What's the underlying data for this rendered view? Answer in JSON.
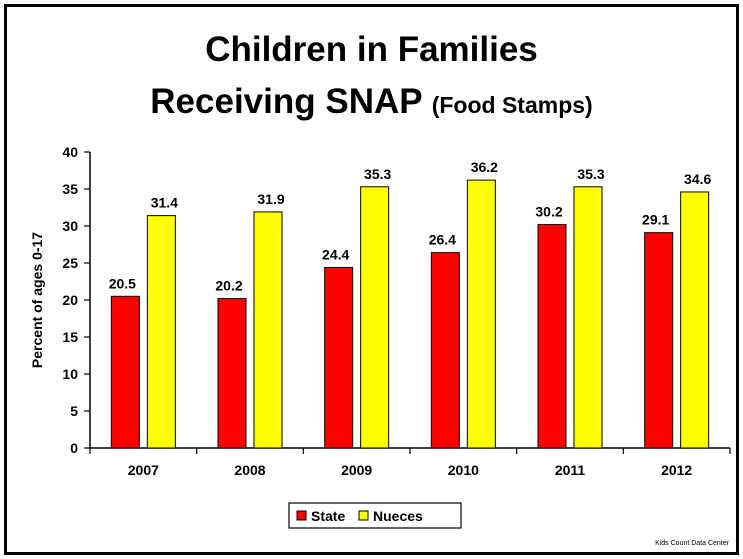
{
  "title_line1": "Children in Families",
  "title_line2": "Receiving SNAP",
  "title_line2_suffix": "(Food Stamps)",
  "source": "Kids Count Data Center",
  "colors": {
    "state": "#ff0000",
    "nueces": "#ffff00",
    "outline": "#000000"
  },
  "chart_data": {
    "type": "bar",
    "categories": [
      "2007",
      "2008",
      "2009",
      "2010",
      "2011",
      "2012"
    ],
    "series": [
      {
        "name": "State",
        "values": [
          20.5,
          20.2,
          24.4,
          26.4,
          30.2,
          29.1
        ]
      },
      {
        "name": "Nueces",
        "values": [
          31.4,
          31.9,
          35.3,
          36.2,
          35.3,
          34.6
        ]
      }
    ],
    "ylabel": "Percent of ages 0-17",
    "xlabel": "",
    "ylim": [
      0,
      40
    ],
    "yticks": [
      0,
      5,
      10,
      15,
      20,
      25,
      30,
      35,
      40
    ],
    "grid": false,
    "legend": "bottom",
    "data_labels": true
  }
}
